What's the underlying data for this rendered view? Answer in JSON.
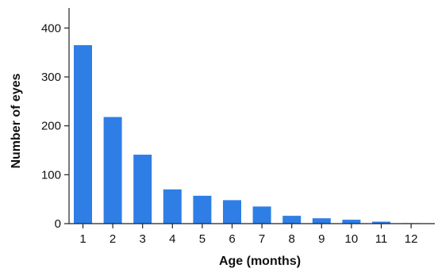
{
  "chart_data": {
    "type": "bar",
    "title": "",
    "xlabel": "Age (months)",
    "ylabel": "Number of eyes",
    "categories": [
      "1",
      "2",
      "3",
      "4",
      "5",
      "6",
      "7",
      "8",
      "9",
      "10",
      "11",
      "12"
    ],
    "values": [
      365,
      218,
      141,
      70,
      57,
      48,
      35,
      16,
      11,
      8,
      4,
      1
    ],
    "ylim": [
      0,
      420
    ],
    "yticks": [
      "0",
      "100",
      "200",
      "300",
      "400"
    ],
    "grid": false,
    "bar_color": "#2e7ee6",
    "axis_color": "#222222"
  }
}
